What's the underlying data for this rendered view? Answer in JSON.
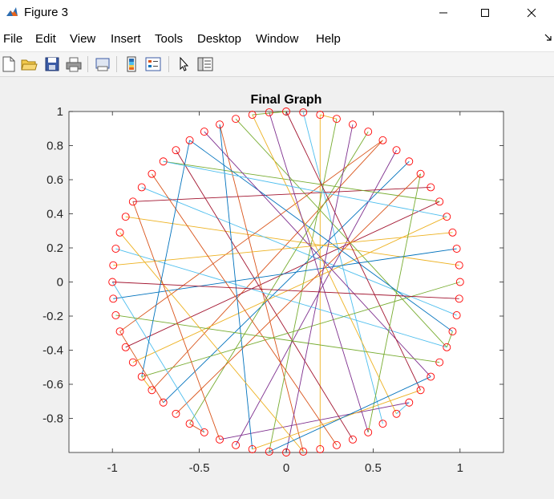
{
  "window": {
    "title": "Figure 3",
    "app_icon": "matlab-icon",
    "controls": [
      "minimize-icon",
      "maximize-icon",
      "close-icon"
    ]
  },
  "menubar": {
    "items": [
      "File",
      "Edit",
      "View",
      "Insert",
      "Tools",
      "Desktop",
      "Window",
      "Help"
    ],
    "dock_arrow_icon": "dock-arrow-icon"
  },
  "toolbar": {
    "icons": [
      "new-figure-icon",
      "open-file-icon",
      "save-icon",
      "print-icon",
      "print-preview-icon",
      "colorbar-icon",
      "legend-icon",
      "pointer-icon",
      "property-inspector-icon"
    ]
  },
  "chart_data": {
    "type": "graph",
    "title": "Final Graph",
    "xlabel": "",
    "ylabel": "",
    "xlim": [
      -1.25,
      1.25
    ],
    "ylim": [
      -1,
      1
    ],
    "xticks": [
      "-1",
      "-0.5",
      "0",
      "0.5",
      "1"
    ],
    "yticks": [
      "1",
      "0.8",
      "0.6",
      "0.4",
      "0.2",
      "0",
      "-0.2",
      "-0.4",
      "-0.6",
      "-0.8"
    ],
    "node_count": 64,
    "node_radius_data": 1,
    "node_color": "#ff0000",
    "edge_colors": [
      "#0072BD",
      "#D95319",
      "#EDB120",
      "#7E2F8E",
      "#77AC30",
      "#4DBEEE",
      "#A2142F"
    ],
    "edges": [
      [
        1,
        26,
        "#4DBEEE"
      ],
      [
        6,
        41,
        "#D95319"
      ],
      [
        8,
        40,
        "#0072BD"
      ],
      [
        2,
        30,
        "#EDB120"
      ],
      [
        11,
        44,
        "#A2142F"
      ],
      [
        15,
        52,
        "#EDB120"
      ],
      [
        18,
        54,
        "#4DBEEE"
      ],
      [
        20,
        61,
        "#77AC30"
      ],
      [
        24,
        36,
        "#7E2F8E"
      ],
      [
        28,
        57,
        "#A2142F"
      ],
      [
        31,
        60,
        "#D95319"
      ],
      [
        33,
        3,
        "#77AC30"
      ],
      [
        35,
        7,
        "#7E2F8E"
      ],
      [
        38,
        5,
        "#77AC30"
      ],
      [
        43,
        12,
        "#EDB120"
      ],
      [
        45,
        6,
        "#D95319"
      ],
      [
        47,
        14,
        "#0072BD"
      ],
      [
        50,
        20,
        "#4DBEEE"
      ],
      [
        53,
        10,
        "#A2142F"
      ],
      [
        56,
        11,
        "#77AC30"
      ],
      [
        58,
        19,
        "#0072BD"
      ],
      [
        59,
        22,
        "#7E2F8E"
      ],
      [
        62,
        25,
        "#EDB120"
      ],
      [
        0,
        23,
        "#A2142F"
      ],
      [
        16,
        42,
        "#77AC30"
      ],
      [
        39,
        9,
        "#D95319"
      ],
      [
        27,
        63,
        "#7E2F8E"
      ],
      [
        13,
        49,
        "#EDB120"
      ],
      [
        29,
        55,
        "#D95319"
      ],
      [
        34,
        60,
        "#0072BD"
      ],
      [
        37,
        48,
        "#4DBEEE"
      ],
      [
        46,
        21,
        "#77AC30"
      ],
      [
        51,
        31,
        "#EDB120"
      ],
      [
        4,
        32,
        "#7E2F8E"
      ],
      [
        17,
        48,
        "#A2142F"
      ],
      [
        36,
        53,
        "#D95319"
      ],
      [
        42,
        58,
        "#0072BD"
      ],
      [
        23,
        34,
        "#EDB120"
      ],
      [
        12,
        56,
        "#4DBEEE"
      ],
      [
        9,
        27,
        "#77AC30"
      ],
      [
        40,
        45,
        "#D95319"
      ],
      [
        22,
        33,
        "#0072BD"
      ],
      [
        0,
        62,
        "#77AC30"
      ],
      [
        2,
        3,
        "#EDB120"
      ],
      [
        24,
        25,
        "#4DBEEE"
      ],
      [
        41,
        42,
        "#EDB120"
      ],
      [
        19,
        20,
        "#77AC30"
      ],
      [
        37,
        38,
        "#D95319"
      ]
    ]
  }
}
